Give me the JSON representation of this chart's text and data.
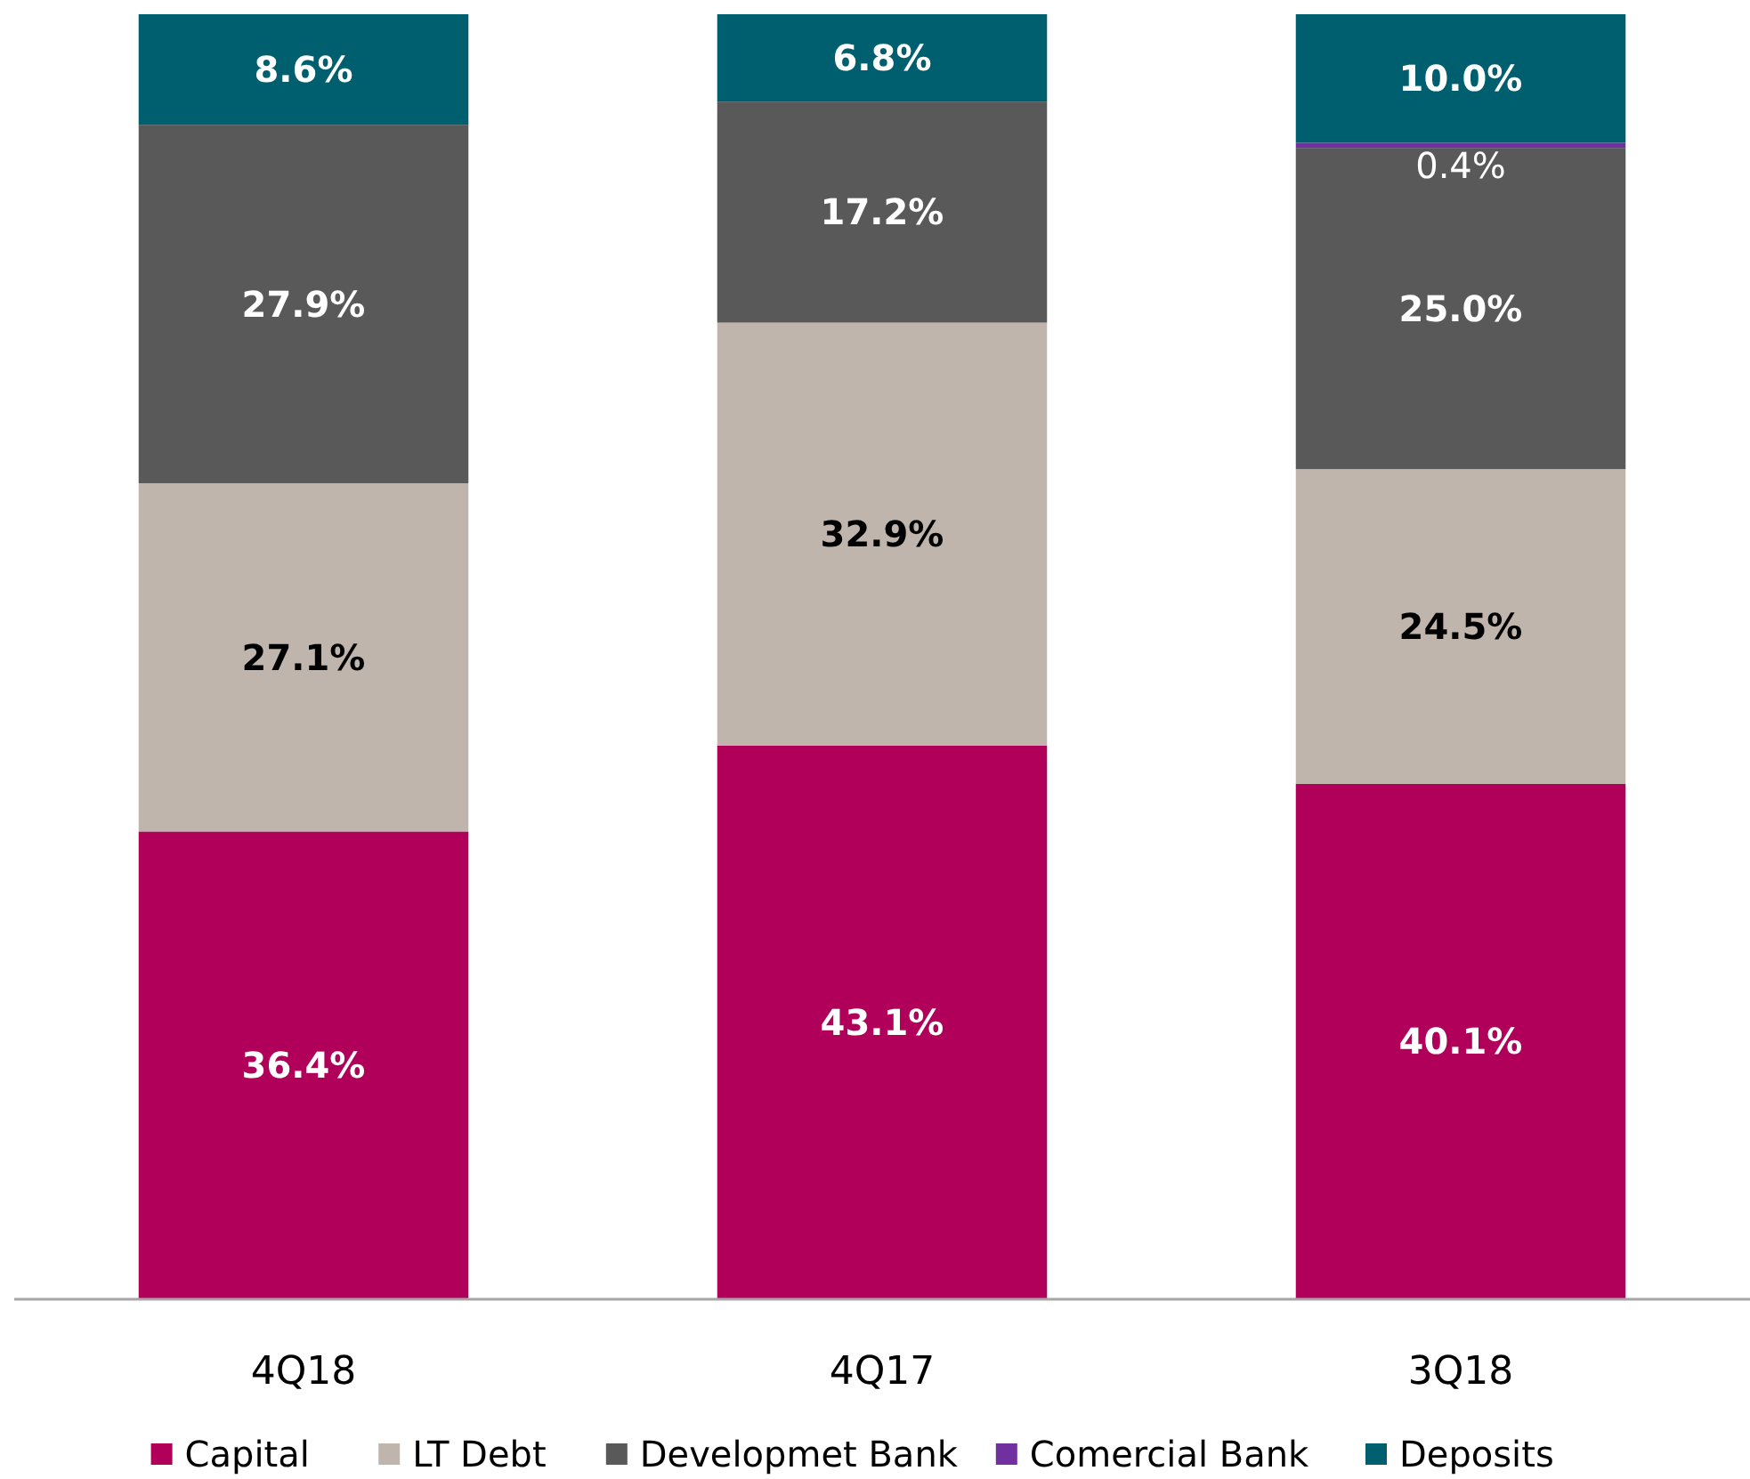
{
  "chart_data": {
    "type": "bar",
    "stacked": true,
    "categories": [
      "4Q18",
      "4Q17",
      "3Q18"
    ],
    "ylim": [
      0,
      100
    ],
    "tick_labels": "x",
    "legend": "bottom",
    "series": [
      {
        "name": "Capital",
        "color": "#b0005a",
        "values": [
          36.4,
          43.1,
          40.1
        ],
        "value_labels": [
          "36.4%",
          "43.1%",
          "40.1%"
        ]
      },
      {
        "name": "LT Debt",
        "color": "#bfb5ac",
        "values": [
          27.1,
          32.9,
          24.5
        ],
        "value_labels": [
          "27.1%",
          "32.9%",
          "24.5%"
        ]
      },
      {
        "name": "Developmet Bank",
        "color": "#595959",
        "values": [
          27.9,
          17.2,
          25.0
        ],
        "value_labels": [
          "27.9%",
          "17.2%",
          "25.0%"
        ]
      },
      {
        "name": "Comercial Bank",
        "color": "#7030a0",
        "values": [
          null,
          null,
          0.4
        ],
        "value_labels": [
          null,
          null,
          "0.4%"
        ]
      },
      {
        "name": "Deposits",
        "color": "#005f6e",
        "values": [
          8.6,
          6.8,
          10.0
        ],
        "value_labels": [
          "8.6%",
          "6.8%",
          "10.0%"
        ]
      }
    ]
  }
}
